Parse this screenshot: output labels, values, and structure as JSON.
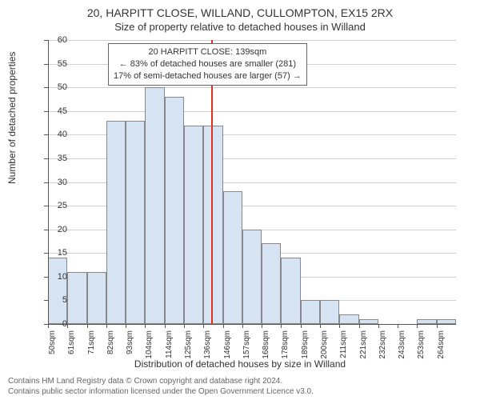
{
  "chart": {
    "type": "histogram",
    "title_main": "20, HARPITT CLOSE, WILLAND, CULLOMPTON, EX15 2RX",
    "title_sub": "Size of property relative to detached houses in Willand",
    "title_fontsize": 14,
    "subtitle_fontsize": 13,
    "y_label": "Number of detached properties",
    "x_title": "Distribution of detached houses by size in Willand",
    "label_fontsize": 12,
    "background_color": "#ffffff",
    "grid_color": "#d0d0d0",
    "axis_color": "#555555",
    "bar_fill": "#d6e3f3",
    "bar_border": "#888888",
    "marker_color": "#e03020",
    "marker_x_value": 139,
    "ylim": [
      0,
      60
    ],
    "ytick_step": 5,
    "yticks": [
      0,
      5,
      10,
      15,
      20,
      25,
      30,
      35,
      40,
      45,
      50,
      55,
      60
    ],
    "x_bin_width": 10.6,
    "x_bin_start": 50,
    "xticks": [
      "50sqm",
      "61sqm",
      "71sqm",
      "82sqm",
      "93sqm",
      "104sqm",
      "114sqm",
      "125sqm",
      "136sqm",
      "146sqm",
      "157sqm",
      "168sqm",
      "178sqm",
      "189sqm",
      "200sqm",
      "211sqm",
      "221sqm",
      "232sqm",
      "243sqm",
      "253sqm",
      "264sqm"
    ],
    "values": [
      14,
      11,
      11,
      43,
      43,
      50,
      48,
      42,
      42,
      28,
      20,
      17,
      14,
      5,
      5,
      2,
      1,
      0,
      0,
      1,
      1
    ],
    "annotation": {
      "line1": "20 HARPITT CLOSE: 139sqm",
      "line2": "← 83% of detached houses are smaller (281)",
      "line3": "17% of semi-detached houses are larger (57) →",
      "border_color": "#666666",
      "bg_color": "#ffffff",
      "fontsize": 11
    },
    "attribution": {
      "line1": "Contains HM Land Registry data © Crown copyright and database right 2024.",
      "line2": "Contains public sector information licensed under the Open Government Licence v3.0.",
      "fontsize": 10,
      "color": "#666666"
    }
  }
}
